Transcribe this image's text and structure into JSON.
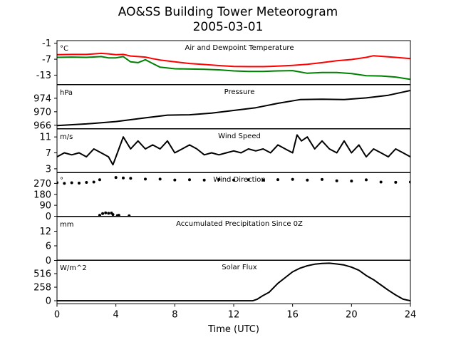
{
  "chart_data": {
    "type": "line",
    "title": "AO&SS Building Tower Meteorogram",
    "subtitle": "2005-03-01",
    "xlabel": "Time (UTC)",
    "xlim": [
      0,
      24
    ],
    "xticks": [
      0,
      4,
      8,
      12,
      16,
      20,
      24
    ],
    "grid": false,
    "panels": [
      {
        "title": "Air and Dewpoint Temperature",
        "unit": "°C",
        "ylim": [
          -16.5,
          0
        ],
        "yticks": [
          -1,
          -7,
          -13
        ],
        "series": [
          {
            "color": "#ff0000",
            "x": [
              0,
              1,
              2,
              3,
              3.5,
              4,
              4.5,
              5,
              5.5,
              6,
              6.5,
              7,
              8,
              9,
              10,
              11,
              12,
              13,
              14,
              15,
              16,
              17,
              18,
              19,
              20,
              21,
              21.5,
              22,
              23,
              24
            ],
            "y": [
              -5.3,
              -5.2,
              -5.2,
              -4.8,
              -5.0,
              -5.3,
              -5.2,
              -5.8,
              -6.0,
              -6.2,
              -6.8,
              -7.3,
              -8.0,
              -8.6,
              -9.0,
              -9.4,
              -9.7,
              -9.8,
              -9.8,
              -9.6,
              -9.3,
              -8.9,
              -8.3,
              -7.6,
              -7.1,
              -6.3,
              -5.7,
              -5.9,
              -6.3,
              -6.8
            ]
          },
          {
            "color": "#008000",
            "x": [
              0,
              1,
              2,
              3,
              3.5,
              4,
              4.5,
              5,
              5.5,
              6,
              6.5,
              7,
              8,
              10,
              11,
              12,
              13,
              14,
              15,
              16,
              17,
              18,
              19,
              20,
              21,
              22,
              23,
              24
            ],
            "y": [
              -6.3,
              -6.2,
              -6.3,
              -6.0,
              -6.5,
              -6.5,
              -6.0,
              -8.0,
              -8.3,
              -7.2,
              -8.6,
              -10.0,
              -10.6,
              -10.8,
              -11.0,
              -11.4,
              -11.6,
              -11.6,
              -11.4,
              -11.3,
              -12.3,
              -12.0,
              -12.0,
              -12.4,
              -13.2,
              -13.3,
              -13.7,
              -14.6
            ]
          }
        ]
      },
      {
        "title": "Pressure",
        "unit": "hPa",
        "ylim": [
          965,
          978
        ],
        "yticks": [
          966,
          970,
          974
        ],
        "series": [
          {
            "color": "#000000",
            "x": [
              0,
              2,
              4,
              6,
              7.5,
              9,
              10.5,
              12,
              13.5,
              15,
              16.5,
              18,
              19.5,
              21,
              22.5,
              24
            ],
            "y": [
              965.9,
              966.4,
              967.1,
              968.2,
              969.0,
              969.1,
              969.6,
              970.4,
              971.2,
              972.5,
              973.6,
              973.7,
              973.6,
              974.1,
              974.9,
              976.3
            ]
          }
        ]
      },
      {
        "title": "Wind Speed",
        "unit": "m/s",
        "ylim": [
          2,
          13
        ],
        "yticks": [
          3,
          7,
          11
        ],
        "series": [
          {
            "color": "#000000",
            "x": [
              0,
              0.5,
              1,
              1.5,
              2,
              2.5,
              3,
              3.5,
              3.8,
              4,
              4.3,
              4.5,
              5,
              5.5,
              6,
              6.5,
              7,
              7.5,
              8,
              8.5,
              9,
              9.5,
              10,
              10.5,
              11,
              11.5,
              12,
              12.5,
              13,
              13.5,
              14,
              14.5,
              15,
              15.5,
              16,
              16.3,
              16.6,
              17,
              17.5,
              18,
              18.5,
              19,
              19.5,
              20,
              20.5,
              21,
              21.5,
              22,
              22.5,
              23,
              23.5,
              24
            ],
            "y": [
              6,
              7,
              6.5,
              7,
              6,
              8,
              7,
              6,
              4,
              6,
              9,
              11,
              8,
              10,
              8,
              9,
              8,
              10,
              7,
              8,
              9,
              8,
              6.5,
              7,
              6.5,
              7,
              7.5,
              7,
              8,
              7.5,
              8,
              7,
              9,
              8,
              7,
              11.5,
              10,
              11,
              8,
              10,
              8,
              7,
              10,
              7,
              9,
              6,
              8,
              7,
              6,
              8,
              7,
              6
            ]
          }
        ]
      },
      {
        "title": "Wind Direction",
        "unit": "°",
        "ylim": [
          0,
          360
        ],
        "yticks": [
          0,
          90,
          180,
          270
        ],
        "series": [
          {
            "color": "#000000",
            "marker": "dot",
            "x": [
              0,
              0.5,
              1,
              1.5,
              2,
              2.5,
              2.9,
              4,
              4.5,
              5,
              6,
              7,
              8,
              9,
              10,
              11,
              12,
              13,
              14,
              15,
              16,
              17,
              18,
              19,
              20,
              21,
              22,
              23,
              24
            ],
            "y": [
              276,
              270,
              275,
              272,
              278,
              281,
              300,
              318,
              315,
              312,
              305,
              305,
              298,
              300,
              297,
              302,
              298,
              300,
              296,
              301,
              303,
              297,
              302,
              291,
              289,
              299,
              281,
              279,
              281
            ]
          },
          {
            "color": "#000000",
            "marker": "dot",
            "x": [
              2.9,
              3.1,
              3.3,
              3.5,
              3.7,
              3.8,
              4.1,
              4.2,
              4.9
            ],
            "y": [
              8,
              22,
              28,
              24,
              26,
              14,
              5,
              8,
              4
            ]
          }
        ]
      },
      {
        "title": "Accumulated Precipitation Since 0Z",
        "unit": "mm",
        "ylim": [
          0,
          18
        ],
        "yticks": [
          0,
          6,
          12
        ],
        "series": [
          {
            "color": "#000000",
            "x": [
              0,
              24
            ],
            "y": [
              0,
              0
            ]
          }
        ]
      },
      {
        "title": "Solar Flux",
        "unit": "W/m^2",
        "ylim": [
          -60,
          774
        ],
        "yticks": [
          0,
          258,
          516
        ],
        "series": [
          {
            "color": "#000000",
            "x": [
              0,
              13.3,
              13.6,
              14,
              14.4,
              15,
              15.5,
              16,
              16.5,
              17,
              17.5,
              18,
              18.5,
              19,
              19.5,
              20,
              20.5,
              21,
              21.5,
              22,
              22.5,
              23,
              23.5,
              24
            ],
            "y": [
              0,
              0,
              30,
              100,
              160,
              330,
              440,
              550,
              620,
              665,
              695,
              710,
              715,
              700,
              680,
              640,
              580,
              480,
              400,
              300,
              200,
              110,
              30,
              0
            ]
          }
        ]
      }
    ]
  }
}
